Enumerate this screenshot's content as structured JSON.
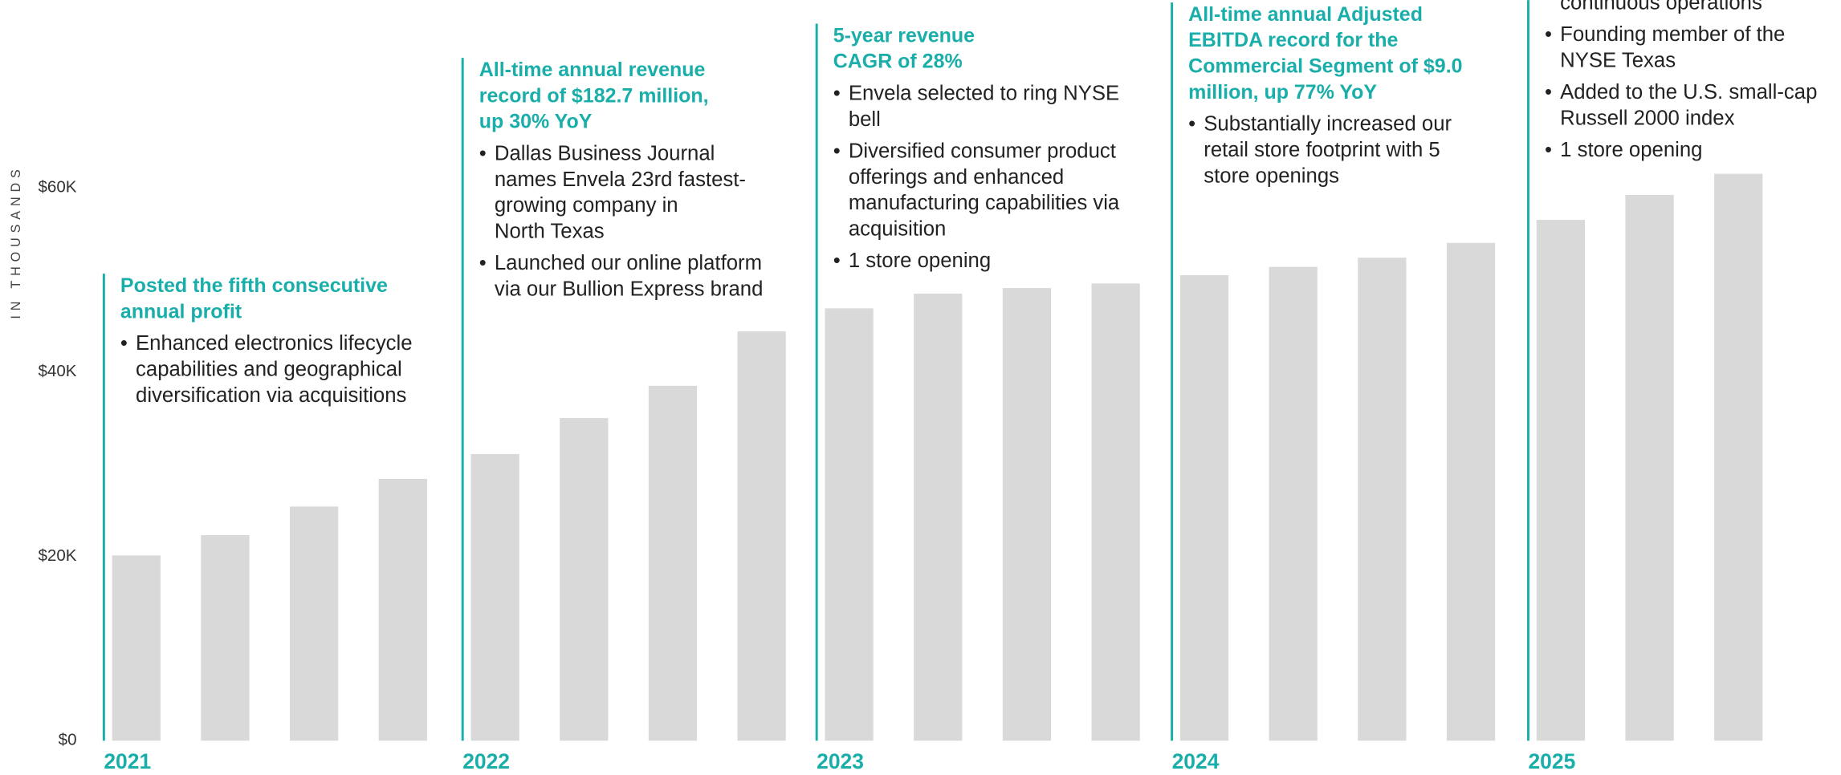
{
  "chart_data": {
    "type": "bar",
    "y_axis_label": "IN THOUSANDS",
    "color": "#d9d9d9",
    "accent_color": "#1aaeaa",
    "ylim": [
      0,
      60
    ],
    "yticks": [
      {
        "value": 0,
        "label": "$0"
      },
      {
        "value": 20,
        "label": "$20K"
      },
      {
        "value": 40,
        "label": "$40K"
      },
      {
        "value": 60,
        "label": "$60K"
      }
    ],
    "groups": [
      {
        "label": "2021",
        "values": [
          20.1,
          22.3,
          25.4,
          28.4
        ],
        "heading": [
          "Posted the fifth consecutive",
          "annual profit"
        ],
        "bullets": [
          [
            "Enhanced electronics lifecycle",
            "capabilities and geographical",
            "diversification via acquisitions"
          ]
        ]
      },
      {
        "label": "2022",
        "values": [
          31.1,
          35.0,
          38.5,
          44.4
        ],
        "heading": [
          "All-time annual revenue",
          "record of $182.7 million,",
          "up 30% YoY"
        ],
        "bullets": [
          [
            "Dallas Business Journal",
            "names Envela 23rd fastest-",
            "growing company in",
            "North Texas"
          ],
          [
            "Launched our online platform",
            "via our Bullion Express brand"
          ]
        ]
      },
      {
        "label": "2023",
        "values": [
          46.9,
          48.5,
          49.1,
          49.6
        ],
        "heading": [
          "5-year revenue",
          "CAGR of 28%"
        ],
        "bullets": [
          [
            "Envela selected to ring NYSE",
            "bell"
          ],
          [
            "Diversified consumer product",
            "offerings and enhanced",
            "manufacturing capabilities via",
            "acquisition"
          ],
          [
            "1 store opening"
          ]
        ]
      },
      {
        "label": "2024",
        "values": [
          50.5,
          51.4,
          52.4,
          54.0
        ],
        "heading": [
          "All-time annual Adjusted",
          "EBITDA record for the",
          "Commercial Segment of $9.0",
          "million, up 77% YoY"
        ],
        "bullets": [
          [
            "Substantially increased our",
            "retail store footprint with 5",
            "store openings"
          ]
        ]
      },
      {
        "label": "2025",
        "values": [
          56.5,
          59.2,
          61.5
        ],
        "bullets": [
          [
            "continuous operations"
          ],
          [
            "Founding member of the",
            "NYSE Texas"
          ],
          [
            "Added to the U.S. small-cap",
            "Russell 2000 index"
          ],
          [
            "1 store opening"
          ]
        ]
      }
    ]
  }
}
